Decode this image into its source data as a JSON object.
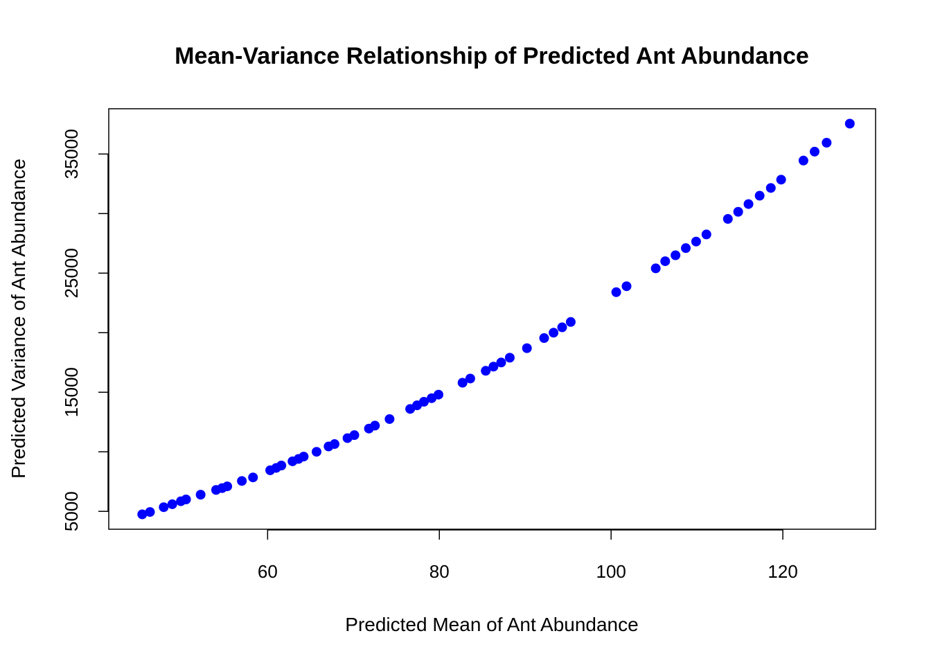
{
  "chart_data": {
    "type": "scatter",
    "title": "Mean-Variance Relationship of Predicted Ant Abundance",
    "xlabel": "Predicted Mean of Ant Abundance",
    "ylabel": "Predicted Variance of Ant Abundance",
    "xlim": [
      41.5,
      130.8
    ],
    "ylim": [
      3500,
      38800
    ],
    "x_ticks": [
      60,
      80,
      100,
      120
    ],
    "y_ticks": [
      5000,
      15000,
      25000,
      35000
    ],
    "x_tick_labels": [
      "60",
      "80",
      "100",
      "120"
    ],
    "y_tick_labels": [
      "5000",
      "15000",
      "25000",
      "35000"
    ],
    "grid": false,
    "point_color": "#0000ff",
    "series": [
      {
        "x": [
          45.4,
          46.3,
          47.9,
          48.9,
          49.9,
          50.5,
          52.2,
          54.0,
          54.7,
          55.3,
          57.0,
          58.3,
          60.3,
          61.0,
          61.6,
          62.9,
          63.6,
          64.2,
          65.7,
          67.1,
          67.8,
          69.3,
          70.1,
          71.8,
          72.5,
          74.2,
          76.6,
          77.4,
          78.2,
          79.1,
          79.9,
          82.7,
          83.6,
          85.4,
          86.3,
          87.2,
          88.2,
          90.2,
          92.2,
          93.3,
          94.3,
          95.3,
          100.6,
          101.8,
          105.2,
          106.3,
          107.5,
          108.7,
          109.9,
          111.1,
          113.6,
          114.8,
          116.0,
          117.3,
          118.6,
          119.8,
          122.4,
          123.7,
          125.1,
          127.8
        ],
        "y": [
          4750,
          4950,
          5350,
          5600,
          5850,
          6000,
          6400,
          6800,
          6950,
          7100,
          7550,
          7850,
          8450,
          8650,
          8850,
          9200,
          9400,
          9600,
          10000,
          10450,
          10650,
          11150,
          11400,
          11950,
          12200,
          12750,
          13600,
          13900,
          14200,
          14500,
          14800,
          15800,
          16150,
          16800,
          17150,
          17500,
          17900,
          18700,
          19550,
          20000,
          20450,
          20900,
          23400,
          23900,
          25400,
          26000,
          26500,
          27100,
          27650,
          28250,
          29550,
          30150,
          30800,
          31500,
          32150,
          32850,
          34450,
          35200,
          35950,
          37550
        ]
      }
    ]
  }
}
